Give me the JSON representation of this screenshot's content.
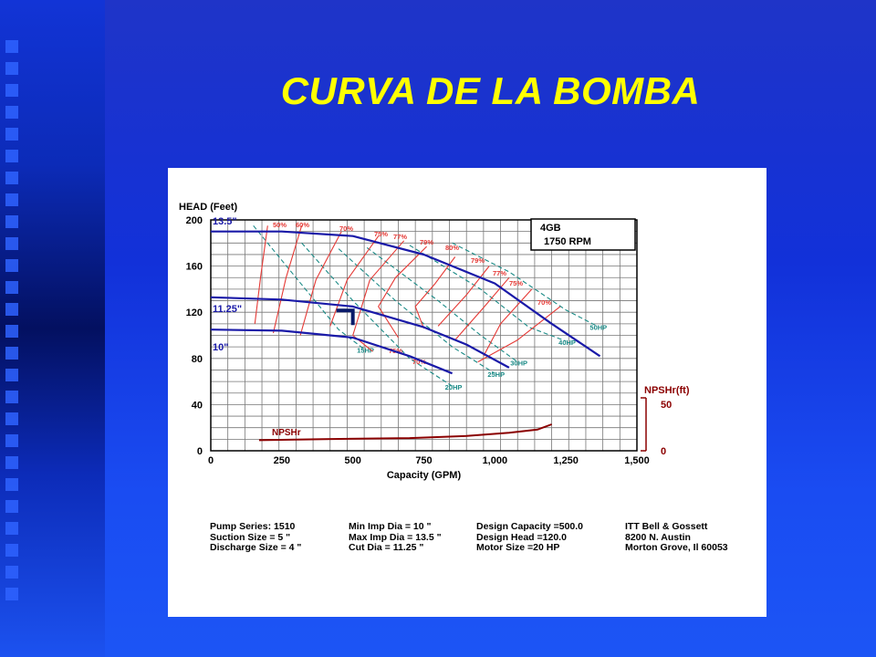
{
  "slide": {
    "title": "CURVA DE LA BOMBA",
    "colors": {
      "title": "#ffff00",
      "background": "#1a3be8",
      "panel": "#ffffff"
    }
  },
  "chart_data": {
    "type": "line",
    "title": "",
    "xlabel": "Capacity (GPM)",
    "ylabel": "HEAD (Feet)",
    "xlim": [
      0,
      1500
    ],
    "ylim": [
      0,
      200
    ],
    "x_ticks": [
      "0",
      "250",
      "500",
      "750",
      "1,000",
      "1,250",
      "1,500"
    ],
    "y_ticks": [
      "0",
      "40",
      "80",
      "120",
      "160",
      "200"
    ],
    "grid": true,
    "secondary_axis": {
      "label": "NPSHr(ft)",
      "ticks": [
        "0",
        "50"
      ],
      "range": [
        0,
        50
      ]
    },
    "info_box": {
      "line1": "4GB",
      "line2": "1750  RPM"
    },
    "impeller_curves": [
      {
        "name": "13.5\"",
        "points": [
          [
            0,
            190
          ],
          [
            250,
            190
          ],
          [
            500,
            186
          ],
          [
            750,
            170
          ],
          [
            1000,
            145
          ],
          [
            1200,
            110
          ],
          [
            1370,
            82
          ]
        ]
      },
      {
        "name": "11.25\"",
        "points": [
          [
            0,
            133
          ],
          [
            250,
            131
          ],
          [
            500,
            125
          ],
          [
            750,
            107
          ],
          [
            900,
            92
          ],
          [
            1050,
            72
          ]
        ]
      },
      {
        "name": "10\"",
        "points": [
          [
            0,
            105
          ],
          [
            250,
            104
          ],
          [
            500,
            98
          ],
          [
            700,
            82
          ],
          [
            850,
            67
          ]
        ]
      }
    ],
    "npsh_curve": {
      "name": "NPSHr",
      "points": [
        [
          170,
          10
        ],
        [
          400,
          11
        ],
        [
          700,
          12
        ],
        [
          900,
          14
        ],
        [
          1050,
          17
        ],
        [
          1150,
          20
        ],
        [
          1200,
          25
        ]
      ]
    },
    "efficiency_labels": [
      "50%",
      "60%",
      "70%",
      "75%",
      "77%",
      "79%",
      "80%",
      "79%",
      "77%",
      "75%",
      "70%",
      "75%",
      "70%"
    ],
    "efficiency_curves": [
      {
        "name": "50%",
        "points": [
          [
            200,
            195
          ],
          [
            175,
            150
          ],
          [
            155,
            110
          ]
        ]
      },
      {
        "name": "60%",
        "points": [
          [
            320,
            195
          ],
          [
            265,
            150
          ],
          [
            220,
            102
          ]
        ]
      },
      {
        "name": "70%",
        "points": [
          [
            460,
            190
          ],
          [
            370,
            148
          ],
          [
            315,
            100
          ]
        ]
      },
      {
        "name": "75%",
        "points": [
          [
            590,
            186
          ],
          [
            480,
            148
          ],
          [
            420,
            108
          ]
        ]
      },
      {
        "name": "77%",
        "points": [
          [
            680,
            182
          ],
          [
            560,
            148
          ],
          [
            500,
            100
          ],
          [
            570,
            86
          ]
        ]
      },
      {
        "name": "79%",
        "points": [
          [
            760,
            177
          ],
          [
            650,
            150
          ],
          [
            590,
            125
          ],
          [
            660,
            98
          ]
        ]
      },
      {
        "name": "80%",
        "points": [
          [
            860,
            168
          ],
          [
            790,
            145
          ],
          [
            720,
            125
          ],
          [
            750,
            106
          ]
        ]
      },
      {
        "name": "79%",
        "points": [
          [
            980,
            160
          ],
          [
            900,
            135
          ],
          [
            800,
            108
          ]
        ]
      },
      {
        "name": "77%",
        "points": [
          [
            1050,
            150
          ],
          [
            960,
            124
          ],
          [
            860,
            96
          ]
        ]
      },
      {
        "name": "75%",
        "points": [
          [
            1130,
            140
          ],
          [
            1020,
            110
          ],
          [
            960,
            82
          ]
        ]
      },
      {
        "name": "70%",
        "points": [
          [
            1230,
            125
          ],
          [
            1080,
            96
          ],
          [
            940,
            77
          ]
        ]
      }
    ],
    "hp_lines": [
      {
        "name": "15HP",
        "points": [
          [
            150,
            195
          ],
          [
            300,
            150
          ],
          [
            450,
            105
          ],
          [
            540,
            88
          ]
        ]
      },
      {
        "name": "20HP",
        "points": [
          [
            320,
            180
          ],
          [
            500,
            130
          ],
          [
            700,
            80
          ],
          [
            850,
            56
          ]
        ]
      },
      {
        "name": "25HP",
        "points": [
          [
            450,
            175
          ],
          [
            650,
            130
          ],
          [
            850,
            90
          ],
          [
            1000,
            67
          ]
        ]
      },
      {
        "name": "30HP",
        "points": [
          [
            550,
            176
          ],
          [
            800,
            130
          ],
          [
            950,
            100
          ],
          [
            1080,
            77
          ]
        ]
      },
      {
        "name": "40HP",
        "points": [
          [
            700,
            178
          ],
          [
            950,
            140
          ],
          [
            1120,
            107
          ],
          [
            1250,
            95
          ]
        ]
      },
      {
        "name": "50HP",
        "points": [
          [
            850,
            180
          ],
          [
            1050,
            155
          ],
          [
            1250,
            122
          ],
          [
            1360,
            108
          ]
        ]
      }
    ],
    "design_point": {
      "x": 500,
      "y": 120
    }
  },
  "info": {
    "col1": "Pump Series: 1510\nSuction Size = 5 \"\nDischarge Size = 4 \"",
    "col2": "Min Imp Dia = 10 \"\nMax Imp Dia = 13.5 \"\nCut Dia = 11.25 \"",
    "col3": "Design Capacity =500.0\nDesign Head =120.0\nMotor Size =20 HP",
    "col4": "ITT Bell & Gossett\n8200 N. Austin\nMorton Grove, Il 60053"
  }
}
